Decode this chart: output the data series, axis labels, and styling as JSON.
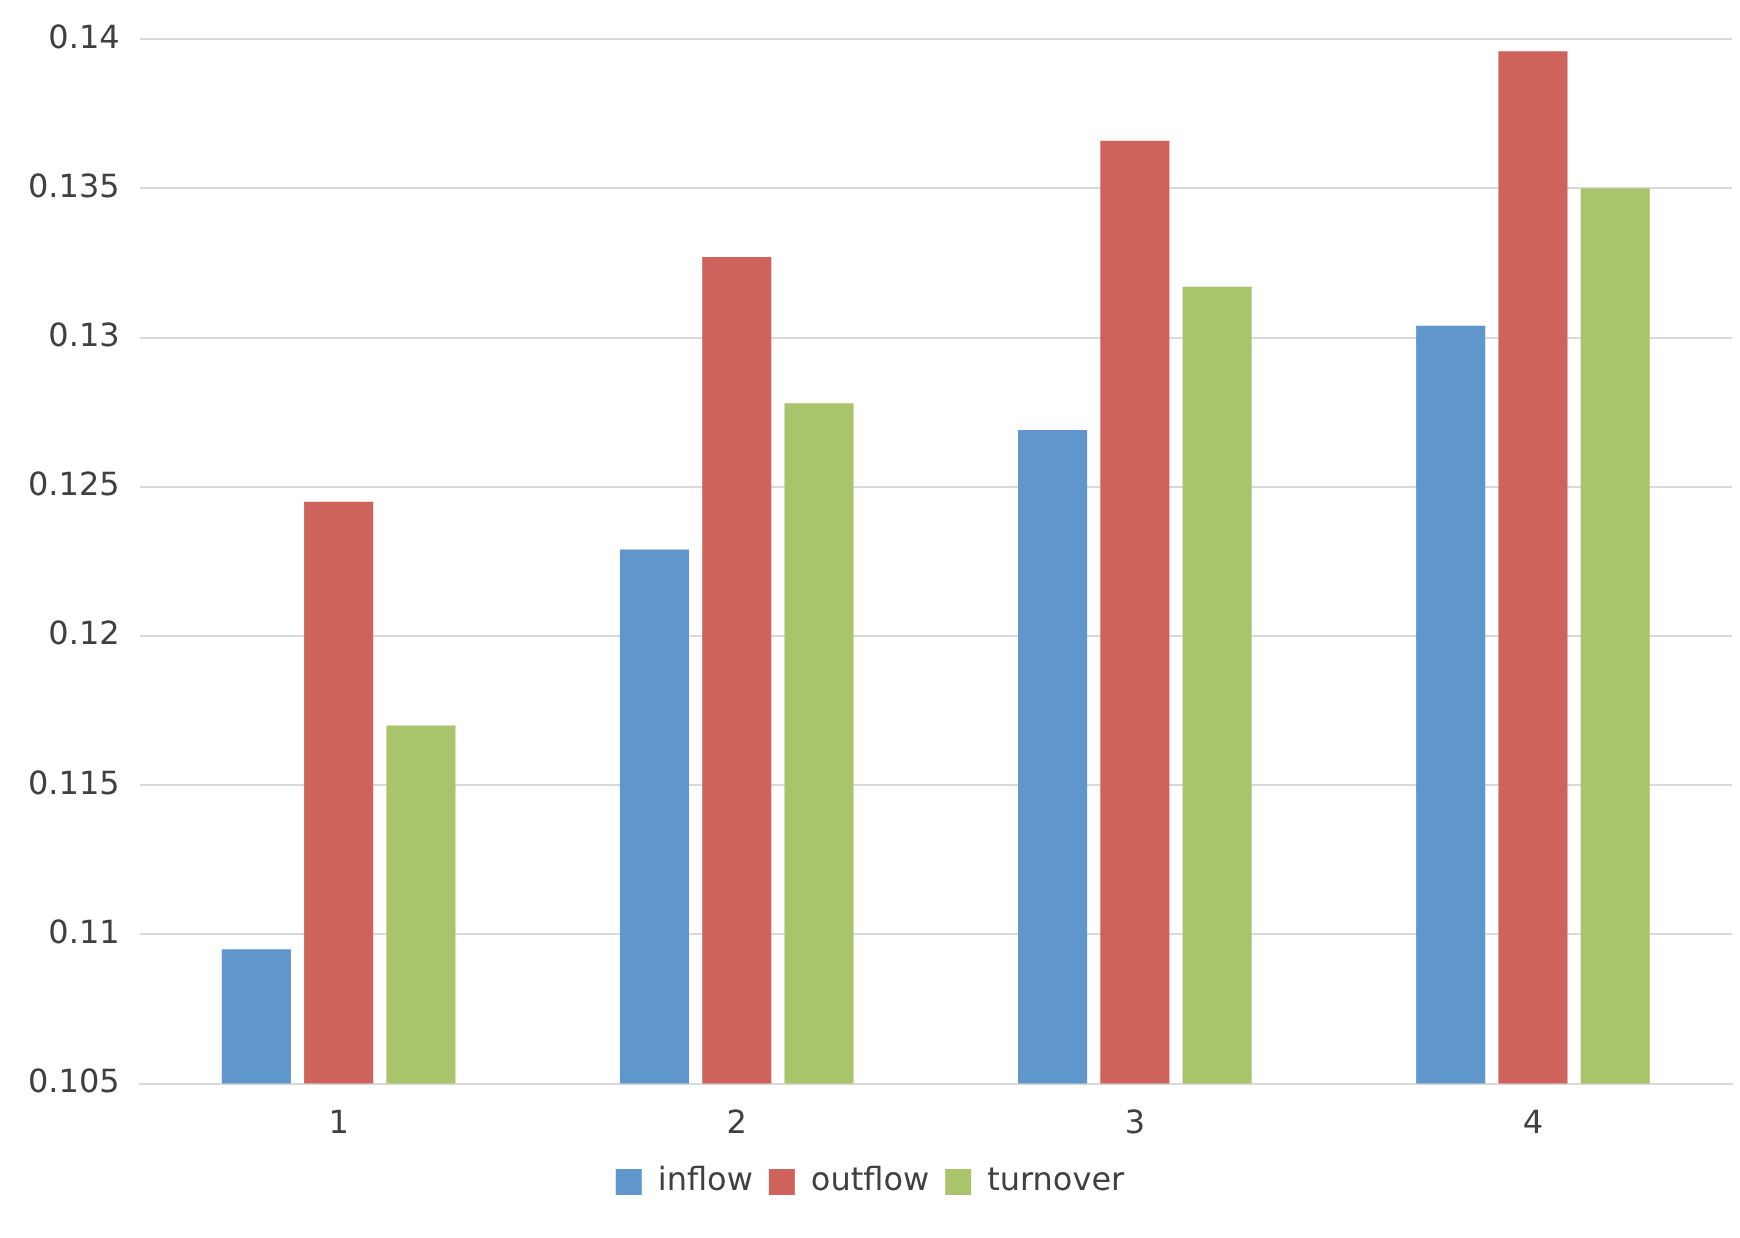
{
  "chart_data": {
    "type": "bar",
    "categories": [
      "1",
      "2",
      "3",
      "4"
    ],
    "series": [
      {
        "name": "inflow",
        "color": "#5f96cb",
        "values": [
          0.1095,
          0.1229,
          0.1269,
          0.1304
        ]
      },
      {
        "name": "outflow",
        "color": "#cd635a",
        "values": [
          0.1245,
          0.1327,
          0.1366,
          0.1396
        ]
      },
      {
        "name": "turnover",
        "color": "#a9c46a",
        "values": [
          0.117,
          0.1278,
          0.1317,
          0.135
        ]
      }
    ],
    "ylim": [
      0.105,
      0.14
    ],
    "yticks": [
      0.105,
      0.11,
      0.115,
      0.12,
      0.125,
      0.13,
      0.135,
      0.14
    ],
    "grid": "y",
    "legend": "bottom"
  }
}
